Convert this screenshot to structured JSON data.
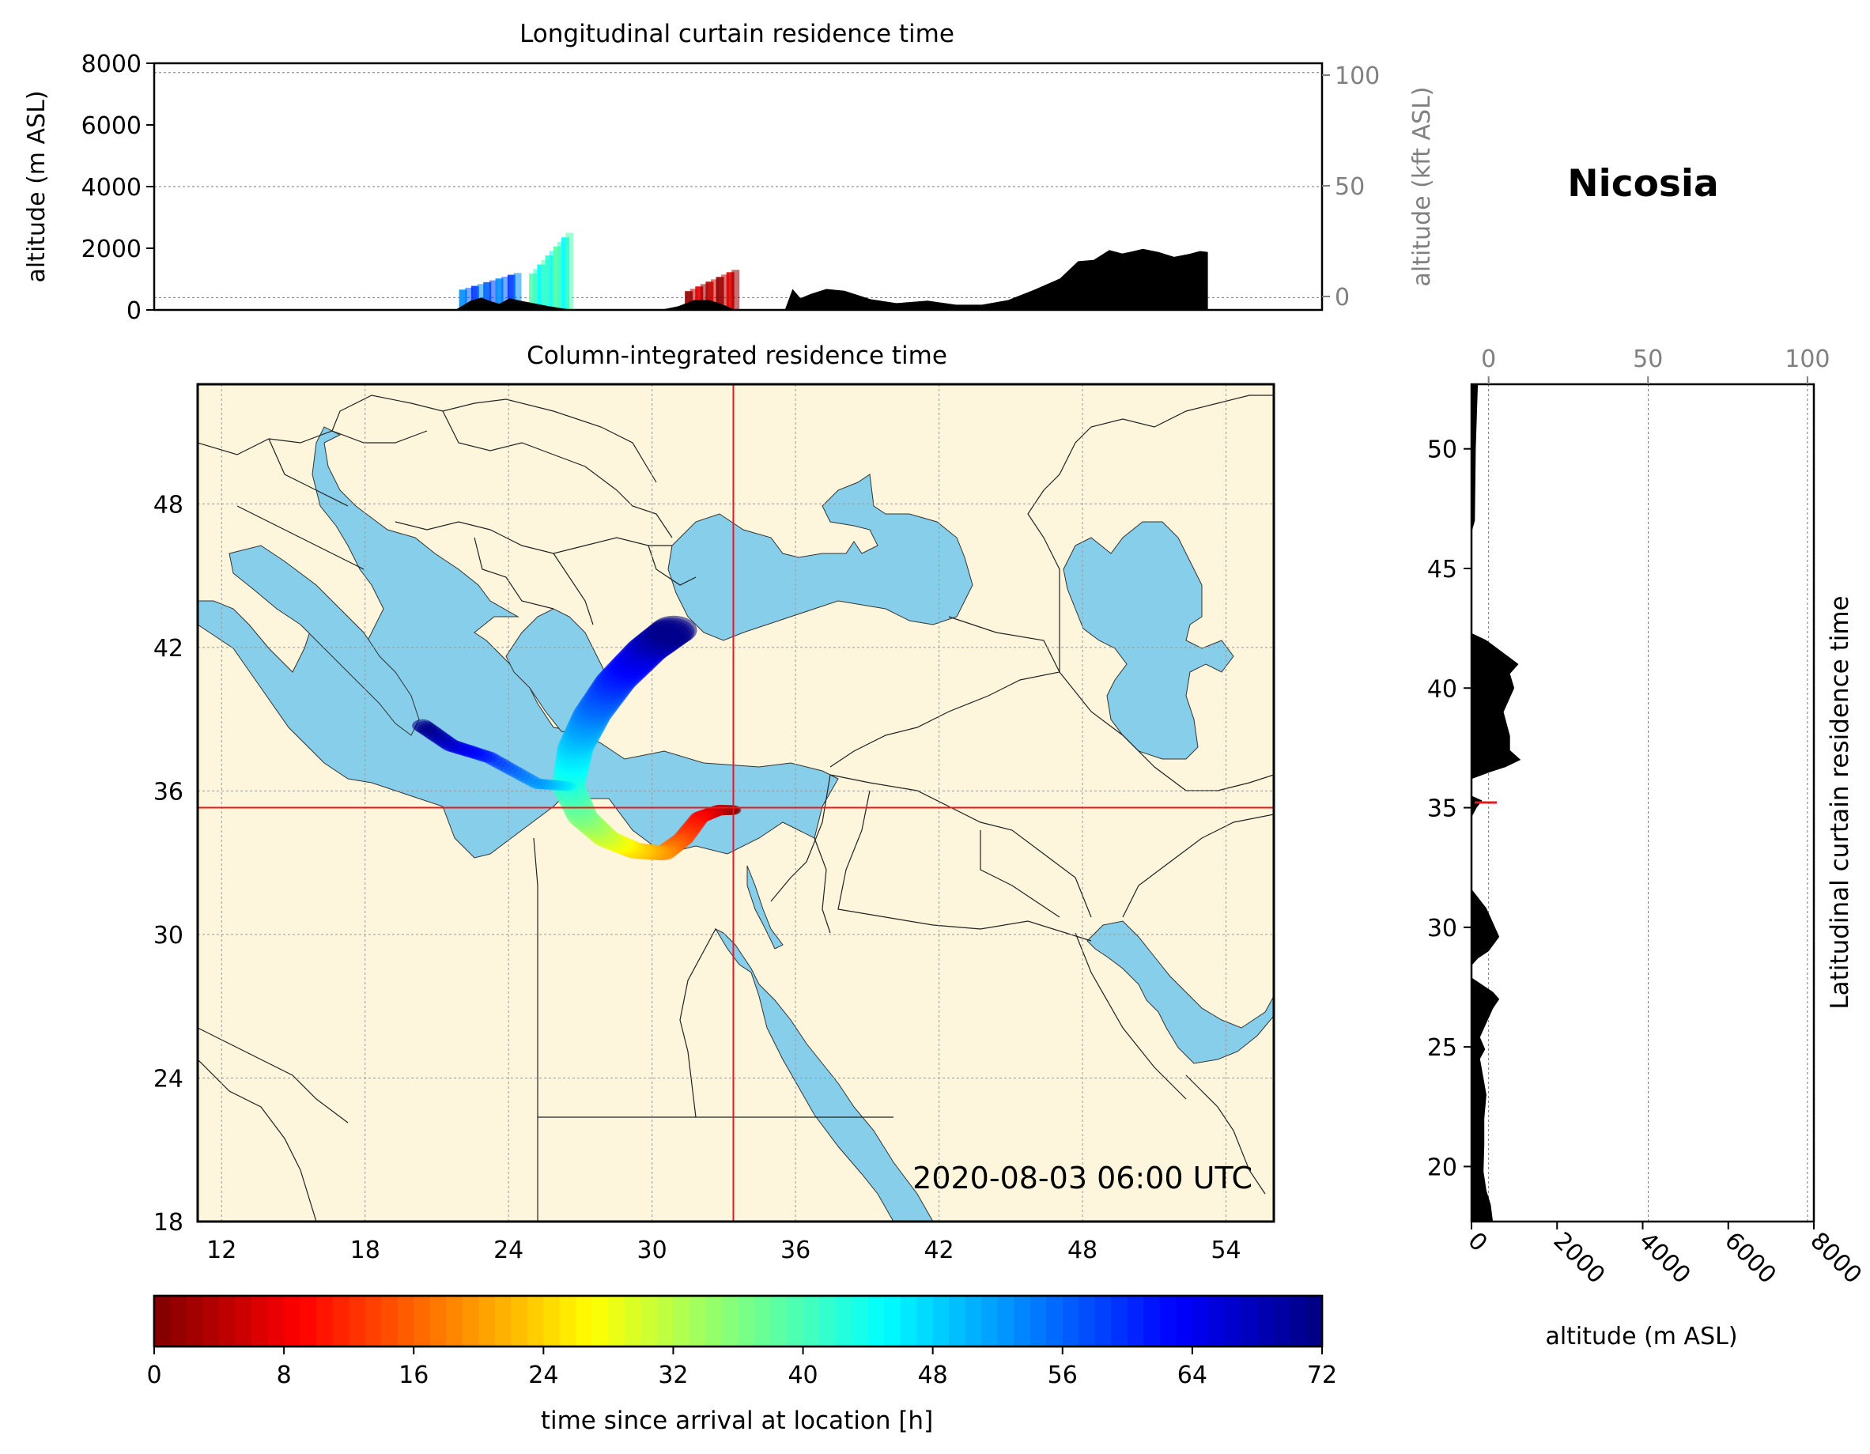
{
  "figure": {
    "site_name": "Nicosia",
    "timestamp": "2020-08-03 06:00 UTC"
  },
  "top_panel": {
    "title": "Longitudinal curtain residence time",
    "ylabel_left": "altitude (m ASL)",
    "ylabel_right": "altitude (kft ASL)",
    "left_ticks": [
      "0",
      "2000",
      "4000",
      "6000",
      "8000"
    ],
    "right_ticks": [
      "0",
      "50",
      "100"
    ]
  },
  "map_panel": {
    "title": "Column-integrated residence time",
    "lon_ticks": [
      "12",
      "18",
      "24",
      "30",
      "36",
      "42",
      "48",
      "54"
    ],
    "lat_ticks": [
      "18",
      "24",
      "30",
      "36",
      "42",
      "48"
    ]
  },
  "side_panel": {
    "title": "Latitudinal curtain residence time",
    "xlabel": "altitude (m ASL)",
    "bottom_ticks": [
      "0",
      "2000",
      "4000",
      "6000",
      "8000"
    ],
    "top_ticks": [
      "0",
      "50",
      "100"
    ],
    "lat_ticks": [
      "20",
      "25",
      "30",
      "35",
      "40",
      "45",
      "50"
    ]
  },
  "colorbar": {
    "label": "time since arrival at location [h]",
    "ticks": [
      "0",
      "8",
      "16",
      "24",
      "32",
      "40",
      "48",
      "56",
      "64",
      "72"
    ],
    "colormap": "jet_r"
  },
  "colors": {
    "sea": "#87ceeb",
    "land": "#fdf6dc",
    "crosshair": "#e8191d",
    "terrain": "#000000"
  },
  "chart_data": [
    {
      "type": "area",
      "panel": "longitudinal curtain",
      "x_range_deg_lon": [
        11,
        56
      ],
      "ylim": [
        0,
        8000
      ],
      "ylim_kft": [
        0,
        100
      ],
      "terrain": {
        "lon": [
          22.6,
          23.2,
          23.6,
          23.9,
          24.3,
          24.7,
          25.1,
          25.6,
          26.2,
          26.8,
          27.2,
          30.5,
          31.2,
          31.8,
          32.4,
          32.9,
          33.4,
          35.3,
          35.6,
          35.9,
          36.3,
          36.9,
          37.6,
          38.6,
          39.6,
          40.8,
          41.9,
          42.9,
          43.9,
          44.9,
          45.9,
          46.6,
          47.2,
          47.8,
          48.3,
          48.7,
          49.1,
          49.7,
          50.3,
          50.9,
          51.3,
          51.6,
          51.6
        ],
        "alt_m": [
          0,
          300,
          400,
          300,
          200,
          380,
          300,
          220,
          120,
          40,
          0,
          0,
          120,
          320,
          320,
          180,
          0,
          0,
          680,
          380,
          520,
          680,
          620,
          350,
          220,
          300,
          170,
          170,
          320,
          650,
          1020,
          1580,
          1620,
          1940,
          1830,
          1900,
          1980,
          1880,
          1720,
          1820,
          1910,
          1880,
          0
        ]
      },
      "plume_segments": [
        {
          "lon": [
            22.9,
            25.0
          ],
          "alt_m": [
            300,
            1200
          ],
          "hours": 56
        },
        {
          "lon": [
            25.6,
            27.0
          ],
          "alt_m": [
            300,
            2500
          ],
          "hours": 42
        },
        {
          "lon": [
            31.6,
            33.4
          ],
          "alt_m": [
            150,
            1300
          ],
          "hours": 4
        }
      ],
      "gridlines_m": [
        7700,
        4000,
        400
      ]
    },
    {
      "type": "heatmap",
      "panel": "column-integrated map",
      "xlim_deg_lon": [
        11,
        56
      ],
      "ylim_deg_lat": [
        18,
        53
      ],
      "receptor": {
        "lon": 33.4,
        "lat": 35.3
      },
      "plume": [
        {
          "lon": 33.4,
          "lat": 35.2,
          "hours": 0
        },
        {
          "lon": 32.8,
          "lat": 35.2,
          "hours": 4
        },
        {
          "lon": 32.0,
          "lat": 34.9,
          "hours": 9
        },
        {
          "lon": 31.3,
          "lat": 34.0,
          "hours": 14
        },
        {
          "lon": 30.5,
          "lat": 33.4,
          "hours": 19
        },
        {
          "lon": 29.3,
          "lat": 33.5,
          "hours": 24
        },
        {
          "lon": 28.1,
          "lat": 34.0,
          "hours": 30
        },
        {
          "lon": 27.1,
          "lat": 34.9,
          "hours": 36
        },
        {
          "lon": 26.5,
          "lat": 36.2,
          "hours": 42
        },
        {
          "lon": 26.8,
          "lat": 37.8,
          "hours": 48
        },
        {
          "lon": 27.5,
          "lat": 39.2,
          "hours": 54
        },
        {
          "lon": 28.5,
          "lat": 40.6,
          "hours": 60
        },
        {
          "lon": 29.8,
          "lat": 41.9,
          "hours": 66
        },
        {
          "lon": 31.0,
          "lat": 42.8,
          "hours": 72
        }
      ],
      "plume_branch": [
        {
          "lon": 25.2,
          "lat": 36.3,
          "hours": 52
        },
        {
          "lon": 23.2,
          "lat": 37.4,
          "hours": 60
        },
        {
          "lon": 21.6,
          "lat": 37.9,
          "hours": 66
        },
        {
          "lon": 20.3,
          "lat": 38.8,
          "hours": 72
        }
      ]
    },
    {
      "type": "area",
      "panel": "latitudinal curtain",
      "xlim": [
        0,
        8000
      ],
      "xlim_kft": [
        0,
        100
      ],
      "ylim_deg_lat": [
        17.7,
        52.7
      ],
      "terrain": {
        "lat": [
          52.7,
          50.0,
          47.0,
          46.5,
          42.3,
          42.0,
          41.4,
          41.0,
          40.6,
          40.0,
          39.0,
          38.0,
          37.4,
          37.0,
          36.7,
          36.5,
          36.2,
          35.5,
          35.3,
          35.0,
          34.6,
          34.0,
          31.6,
          30.8,
          30.2,
          29.6,
          29.0,
          28.7,
          28.4,
          27.9,
          27.3,
          27.0,
          26.6,
          26.0,
          25.4,
          24.9,
          24.5,
          23.0,
          22.0,
          20.9,
          19.8,
          19.0,
          18.4,
          17.7
        ],
        "alt_m": [
          150,
          100,
          80,
          0,
          0,
          350,
          800,
          1100,
          900,
          1000,
          750,
          900,
          900,
          1150,
          800,
          450,
          0,
          0,
          250,
          120,
          0,
          0,
          0,
          350,
          500,
          650,
          400,
          150,
          0,
          0,
          500,
          650,
          500,
          350,
          200,
          320,
          200,
          350,
          300,
          300,
          280,
          350,
          450,
          500
        ]
      },
      "gridlines_m": [
        400,
        4130,
        7850
      ]
    }
  ]
}
